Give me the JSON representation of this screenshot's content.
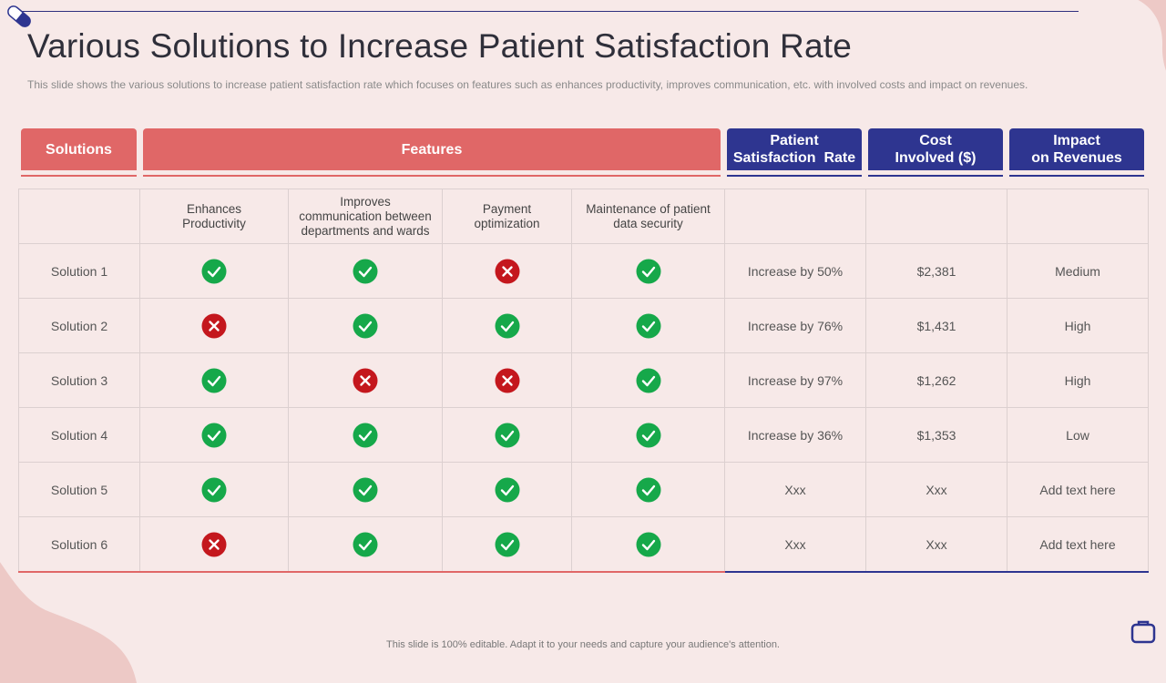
{
  "title": "Various Solutions to Increase Patient Satisfaction Rate",
  "subtitle": "This slide shows the various solutions to increase patient satisfaction rate which focuses on features such as enhances productivity, improves communication, etc. with involved costs and impact on revenues.",
  "headers": {
    "solutions": "Solutions",
    "features": "Features",
    "satisfaction_l1": "Patient",
    "satisfaction_l2": "Satisfaction  Rate",
    "cost_l1": "Cost",
    "cost_l2": "Involved ($)",
    "impact_l1": "Impact",
    "impact_l2": "on Revenues"
  },
  "features": {
    "f1_l1": "Enhances",
    "f1_l2": "Productivity",
    "f2_l1": "Improves",
    "f2_l2": "communication between",
    "f2_l3": "departments and wards",
    "f3_l1": "Payment",
    "f3_l2": "optimization",
    "f4_l1": "Maintenance of patient",
    "f4_l2": "data security"
  },
  "rows": [
    {
      "name": "Solution 1",
      "f1": true,
      "f2": true,
      "f3": false,
      "f4": true,
      "rate": "Increase by 50%",
      "cost": "$2,381",
      "impact": "Medium"
    },
    {
      "name": "Solution 2",
      "f1": false,
      "f2": true,
      "f3": true,
      "f4": true,
      "rate": "Increase by 76%",
      "cost": "$1,431",
      "impact": "High"
    },
    {
      "name": "Solution 3",
      "f1": true,
      "f2": false,
      "f3": false,
      "f4": true,
      "rate": "Increase by 97%",
      "cost": "$1,262",
      "impact": "High"
    },
    {
      "name": "Solution 4",
      "f1": true,
      "f2": true,
      "f3": true,
      "f4": true,
      "rate": "Increase by 36%",
      "cost": "$1,353",
      "impact": "Low"
    },
    {
      "name": "Solution 5",
      "f1": true,
      "f2": true,
      "f3": true,
      "f4": true,
      "rate": "Xxx",
      "cost": "Xxx",
      "impact": "Add text here"
    },
    {
      "name": "Solution 6",
      "f1": false,
      "f2": true,
      "f3": true,
      "f4": true,
      "rate": "Xxx",
      "cost": "Xxx",
      "impact": "Add text here"
    }
  ],
  "icons": {
    "yes": "check-circle-icon",
    "no": "x-circle-icon"
  },
  "colors": {
    "red_header": "#e06767",
    "blue_header": "#2e3590",
    "check": "#16a84a",
    "cross": "#c4171d",
    "background": "#f7e9e8"
  },
  "footer": "This slide is 100% editable. Adapt it to your needs and capture your audience's attention."
}
